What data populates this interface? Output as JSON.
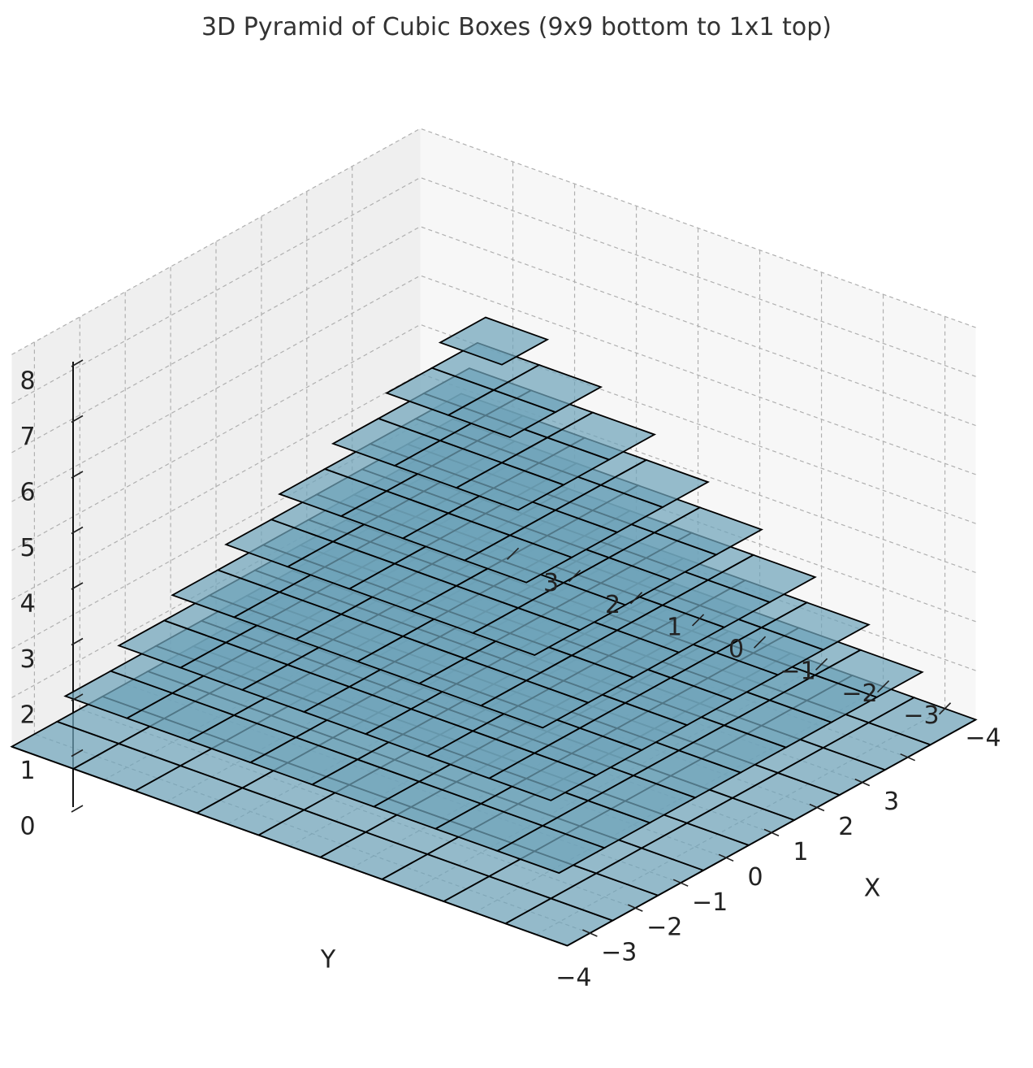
{
  "chart_data": {
    "type": "bar3d",
    "title": "3D Pyramid of Cubic Boxes (9x9 bottom to 1x1 top)",
    "xlabel": "X",
    "ylabel": "Y",
    "zlabel": "",
    "x_ticks": [
      "−4",
      "−3",
      "−2",
      "−1",
      "0",
      "1",
      "2",
      "3"
    ],
    "y_ticks": [
      "−4",
      "−3",
      "−2",
      "−1",
      "0",
      "1",
      "2",
      "3"
    ],
    "z_ticks": [
      "0",
      "1",
      "2",
      "3",
      "4",
      "5",
      "6",
      "7",
      "8"
    ],
    "xlim": [
      -4.5,
      4.5
    ],
    "ylim": [
      -4.5,
      4.5
    ],
    "zlim": [
      0,
      8
    ],
    "grid": true,
    "layers": [
      {
        "level": 0,
        "size": 9
      },
      {
        "level": 1,
        "size": 8
      },
      {
        "level": 2,
        "size": 7
      },
      {
        "level": 3,
        "size": 6
      },
      {
        "level": 4,
        "size": 5
      },
      {
        "level": 5,
        "size": 4
      },
      {
        "level": 6,
        "size": 3
      },
      {
        "level": 7,
        "size": 2
      },
      {
        "level": 8,
        "size": 1
      }
    ],
    "colors": {
      "box_face": "#6fa3ba",
      "box_edge": "#000000",
      "pane_floor": "#f4f4f4",
      "pane_wall": "#efefef",
      "grid": "#b0b0b0"
    }
  }
}
